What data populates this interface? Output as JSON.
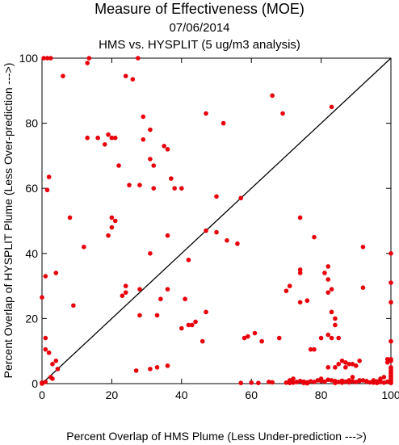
{
  "chart_data": {
    "type": "scatter",
    "title": "Measure of Effectiveness (MOE)",
    "date": "07/06/2014",
    "subtitle": "HMS vs. HYSPLIT  (5 ug/m3 analysis)",
    "xlabel": "Percent Overlap of HMS Plume (Less Under-prediction --->)",
    "ylabel": "Percent Overlap of HYSPLIT Plume (Less Over-prediction --->)",
    "xlim": [
      0,
      100
    ],
    "ylim": [
      0,
      100
    ],
    "xticks": [
      "0",
      "20",
      "40",
      "60",
      "80",
      "100"
    ],
    "yticks": [
      "0",
      "20",
      "40",
      "60",
      "80",
      "100"
    ],
    "reference_line": {
      "from": [
        0,
        0
      ],
      "to": [
        100,
        100
      ]
    },
    "marker_color": "#e8000b",
    "points": [
      [
        0.5,
        100
      ],
      [
        1.5,
        100
      ],
      [
        2.5,
        100
      ],
      [
        13.5,
        100
      ],
      [
        27.5,
        100
      ],
      [
        13,
        98.5
      ],
      [
        6,
        94.5
      ],
      [
        24,
        94.5
      ],
      [
        26,
        93.5
      ],
      [
        47,
        83
      ],
      [
        29,
        82
      ],
      [
        69,
        83
      ],
      [
        52,
        80
      ],
      [
        31,
        78
      ],
      [
        13,
        75.5
      ],
      [
        16,
        75.5
      ],
      [
        19,
        76.5
      ],
      [
        20,
        75.5
      ],
      [
        21,
        75.5
      ],
      [
        18,
        73.5
      ],
      [
        29,
        75
      ],
      [
        35,
        73
      ],
      [
        36,
        72
      ],
      [
        31,
        69
      ],
      [
        32,
        67
      ],
      [
        22,
        67
      ],
      [
        2,
        63.5
      ],
      [
        37,
        63
      ],
      [
        38,
        60
      ],
      [
        25,
        61
      ],
      [
        28,
        61
      ],
      [
        32,
        60
      ],
      [
        40,
        60
      ],
      [
        1.5,
        59.5
      ],
      [
        50,
        57.5
      ],
      [
        57,
        57
      ],
      [
        8,
        51
      ],
      [
        20,
        51
      ],
      [
        21,
        50
      ],
      [
        20,
        48
      ],
      [
        47,
        47
      ],
      [
        50,
        46.5
      ],
      [
        19,
        45.5
      ],
      [
        36,
        45.5
      ],
      [
        53,
        44
      ],
      [
        56,
        43
      ],
      [
        12,
        42
      ],
      [
        31,
        40
      ],
      [
        42,
        38
      ],
      [
        4,
        34
      ],
      [
        1,
        33
      ],
      [
        24,
        30
      ],
      [
        24,
        28
      ],
      [
        28,
        29
      ],
      [
        36,
        29
      ],
      [
        23,
        27
      ],
      [
        0,
        26.5
      ],
      [
        34,
        26
      ],
      [
        41,
        26
      ],
      [
        9,
        24
      ],
      [
        28,
        21
      ],
      [
        33,
        21
      ],
      [
        42,
        18
      ],
      [
        44,
        19
      ],
      [
        40,
        17
      ],
      [
        43,
        18
      ],
      [
        47,
        22
      ],
      [
        1,
        14
      ],
      [
        1,
        10.5
      ],
      [
        2,
        9.5
      ],
      [
        3,
        6
      ],
      [
        4,
        7
      ],
      [
        4.5,
        4.5
      ],
      [
        2.5,
        2
      ],
      [
        3,
        1.5
      ],
      [
        1,
        0.5
      ],
      [
        0,
        0
      ],
      [
        0,
        0.3
      ],
      [
        46,
        13
      ],
      [
        33,
        5
      ],
      [
        31,
        4.5
      ],
      [
        36,
        5.5
      ],
      [
        27,
        4
      ],
      [
        58,
        14
      ],
      [
        59,
        14.5
      ],
      [
        61,
        15.5
      ],
      [
        63,
        13
      ],
      [
        68,
        14
      ],
      [
        57,
        0.2
      ],
      [
        60,
        0.3
      ],
      [
        62,
        0.2
      ],
      [
        65,
        0.5
      ],
      [
        66,
        0.4
      ],
      [
        70,
        0.3
      ],
      [
        71,
        0.2
      ],
      [
        72,
        0.3
      ],
      [
        73,
        0.5
      ],
      [
        74,
        0.8
      ],
      [
        75,
        0.6
      ],
      [
        76,
        0.4
      ],
      [
        77,
        0.7
      ],
      [
        78,
        0.5
      ],
      [
        79,
        1
      ],
      [
        80,
        0.8
      ],
      [
        81,
        0.6
      ],
      [
        82,
        1.2
      ],
      [
        83,
        1
      ],
      [
        84,
        0.8
      ],
      [
        85,
        0.5
      ],
      [
        86,
        0.9
      ],
      [
        87,
        0.6
      ],
      [
        88,
        0.4
      ],
      [
        89,
        0.7
      ],
      [
        90,
        0.5
      ],
      [
        91,
        0.8
      ],
      [
        92,
        1
      ],
      [
        93,
        0.6
      ],
      [
        94,
        0.4
      ],
      [
        95,
        0.3
      ],
      [
        96,
        0.2
      ],
      [
        97,
        0.5
      ],
      [
        98,
        0.3
      ],
      [
        99,
        0.6
      ],
      [
        100,
        0.2
      ],
      [
        100,
        0.5
      ],
      [
        100,
        1
      ],
      [
        100,
        1.5
      ],
      [
        100,
        2
      ],
      [
        100,
        2.5
      ],
      [
        100,
        3
      ],
      [
        100,
        3.5
      ],
      [
        100,
        4
      ],
      [
        100,
        4.5
      ],
      [
        100,
        5
      ],
      [
        99,
        6.5
      ],
      [
        100,
        7
      ],
      [
        100,
        7.5
      ],
      [
        99,
        7.5
      ],
      [
        100,
        13
      ],
      [
        100,
        31
      ],
      [
        100,
        40
      ],
      [
        92,
        42
      ],
      [
        92,
        29.5
      ],
      [
        82,
        28
      ],
      [
        82,
        36
      ],
      [
        81,
        34
      ],
      [
        82,
        32
      ],
      [
        83,
        29
      ],
      [
        70,
        28.5
      ],
      [
        71,
        30
      ],
      [
        74,
        34
      ],
      [
        74,
        35
      ],
      [
        74,
        51
      ],
      [
        78,
        45
      ],
      [
        66,
        88.5
      ],
      [
        83,
        85
      ],
      [
        76,
        25.5
      ],
      [
        74,
        25
      ],
      [
        77,
        10.5
      ],
      [
        78,
        10.5
      ],
      [
        80,
        14
      ],
      [
        82,
        15
      ],
      [
        83,
        14
      ],
      [
        84,
        18
      ],
      [
        83,
        22
      ],
      [
        84,
        20
      ],
      [
        85,
        14
      ],
      [
        86,
        7
      ],
      [
        87,
        6.5
      ],
      [
        88,
        6
      ],
      [
        89,
        6
      ],
      [
        90,
        5.5
      ],
      [
        91,
        7
      ],
      [
        82,
        5
      ],
      [
        84,
        5
      ],
      [
        85,
        6
      ],
      [
        87,
        5
      ],
      [
        88,
        1
      ],
      [
        89,
        2
      ],
      [
        91,
        1
      ],
      [
        93,
        0.8
      ],
      [
        95,
        1
      ],
      [
        96,
        0.7
      ],
      [
        97,
        1.5
      ],
      [
        98,
        2
      ],
      [
        100,
        25
      ],
      [
        84,
        0.2
      ],
      [
        86,
        0.3
      ],
      [
        75,
        0.2
      ],
      [
        76,
        0.1
      ],
      [
        71,
        1
      ],
      [
        72,
        1.5
      ],
      [
        80,
        1.5
      ]
    ]
  }
}
